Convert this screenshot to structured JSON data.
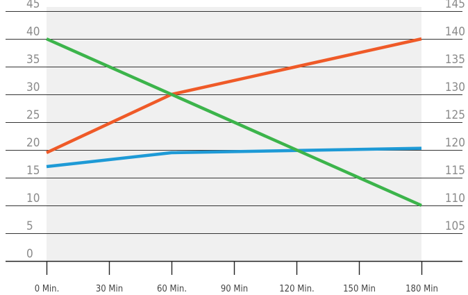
{
  "chart_data": {
    "type": "line",
    "title": "",
    "xlabel": "",
    "ylabel": "",
    "categories": [
      "0 Min.",
      "30 Min",
      "60 Min.",
      "90 Min",
      "120 Min.",
      "150 Min",
      "180 Min"
    ],
    "x": [
      0,
      30,
      60,
      90,
      120,
      150,
      180
    ],
    "ylim": [
      0,
      45
    ],
    "y2lim": [
      100,
      145
    ],
    "y_ticks": [
      0,
      5,
      10,
      15,
      20,
      25,
      30,
      35,
      40,
      45
    ],
    "y2_ticks": [
      105,
      110,
      115,
      120,
      125,
      130,
      135,
      140,
      145
    ],
    "grid": true,
    "series": [
      {
        "color": "#ef5a28",
        "axis": "left",
        "x": [
          0,
          60,
          120,
          180
        ],
        "values": [
          19.5,
          30,
          35,
          40
        ]
      },
      {
        "color": "#1e9ad6",
        "axis": "left",
        "x": [
          0,
          60,
          180
        ],
        "values": [
          17,
          19.5,
          20.3
        ]
      },
      {
        "color": "#3cb44b",
        "axis": "left",
        "x": [
          0,
          60,
          120,
          180
        ],
        "values": [
          40,
          30,
          20,
          10
        ]
      }
    ]
  }
}
